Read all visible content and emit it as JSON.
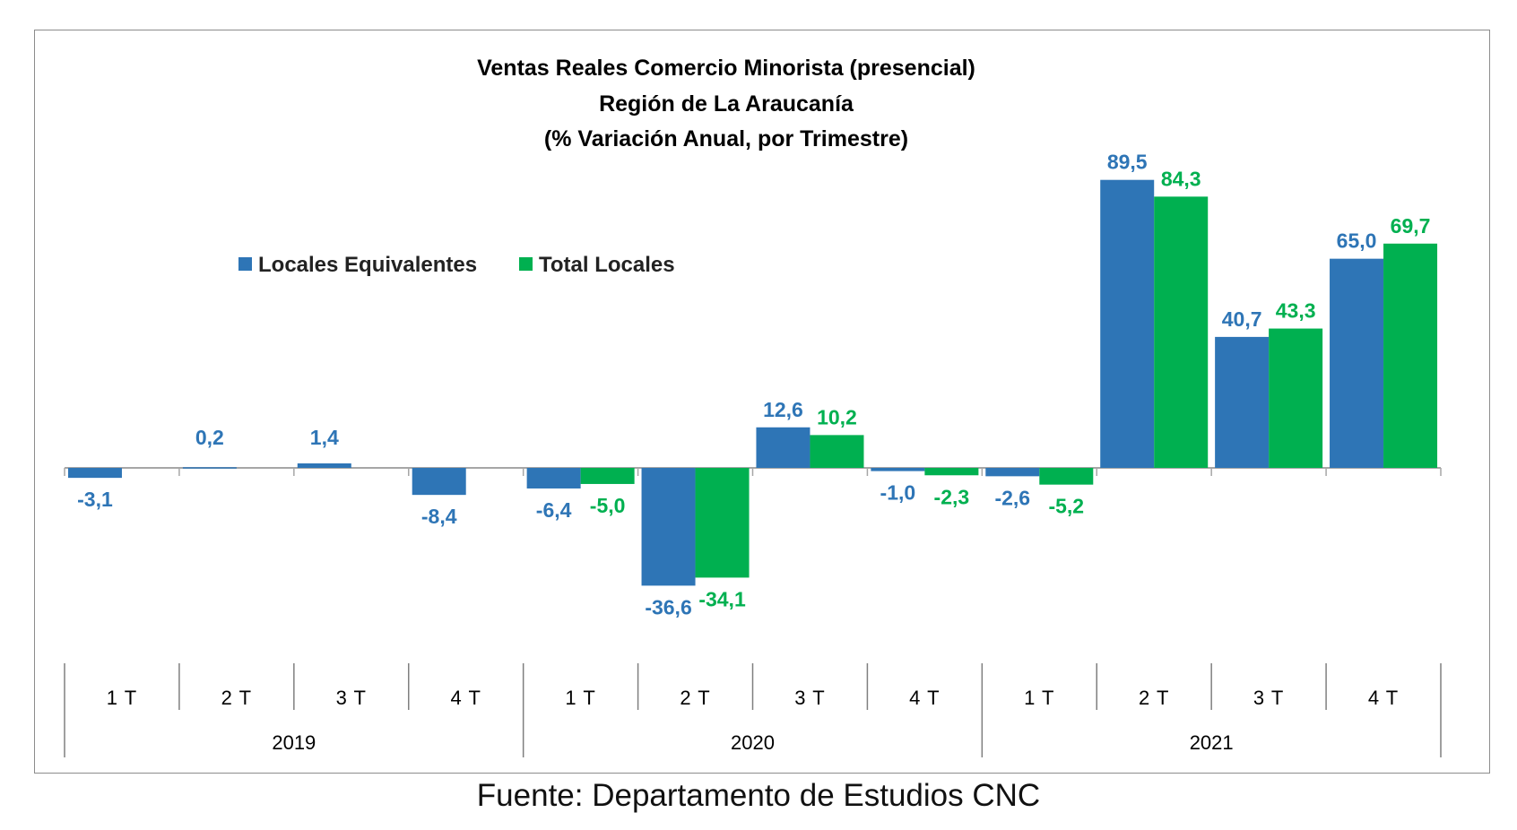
{
  "chart_data": {
    "type": "bar",
    "title_lines": [
      "Ventas Reales Comercio Minorista  (presencial)",
      "Región de La Araucanía",
      "(% Variación Anual, por Trimestre)"
    ],
    "categories": [
      "1 T",
      "2 T",
      "3 T",
      "4 T",
      "1 T",
      "2 T",
      "3 T",
      "4 T",
      "1 T",
      "2 T",
      "3 T",
      "4 T"
    ],
    "groups": [
      {
        "label": "2019",
        "count": 4
      },
      {
        "label": "2020",
        "count": 4
      },
      {
        "label": "2021",
        "count": 4
      }
    ],
    "series": [
      {
        "name": "Locales Equivalentes",
        "color": "#2e75b6",
        "values": [
          -3.1,
          0.2,
          1.4,
          -8.4,
          -6.4,
          -36.6,
          12.6,
          -1.0,
          -2.6,
          89.5,
          40.7,
          65.0
        ],
        "labels": [
          "-3,1",
          "0,2",
          "1,4",
          "-8,4",
          "-6,4",
          "-36,6",
          "12,6",
          "-1,0",
          "-2,6",
          "89,5",
          "40,7",
          "65,0"
        ]
      },
      {
        "name": "Total Locales",
        "color": "#00b050",
        "values": [
          null,
          null,
          null,
          null,
          -5.0,
          -34.1,
          10.2,
          -2.3,
          -5.2,
          84.3,
          43.3,
          69.7
        ],
        "labels": [
          null,
          null,
          null,
          null,
          "-5,0",
          "-34,1",
          "10,2",
          "-2,3",
          "-5,2",
          "84,3",
          "43,3",
          "69,7"
        ]
      }
    ],
    "legend_position": "upper-left",
    "grid": false
  },
  "source": "Fuente: Departamento de Estudios CNC"
}
